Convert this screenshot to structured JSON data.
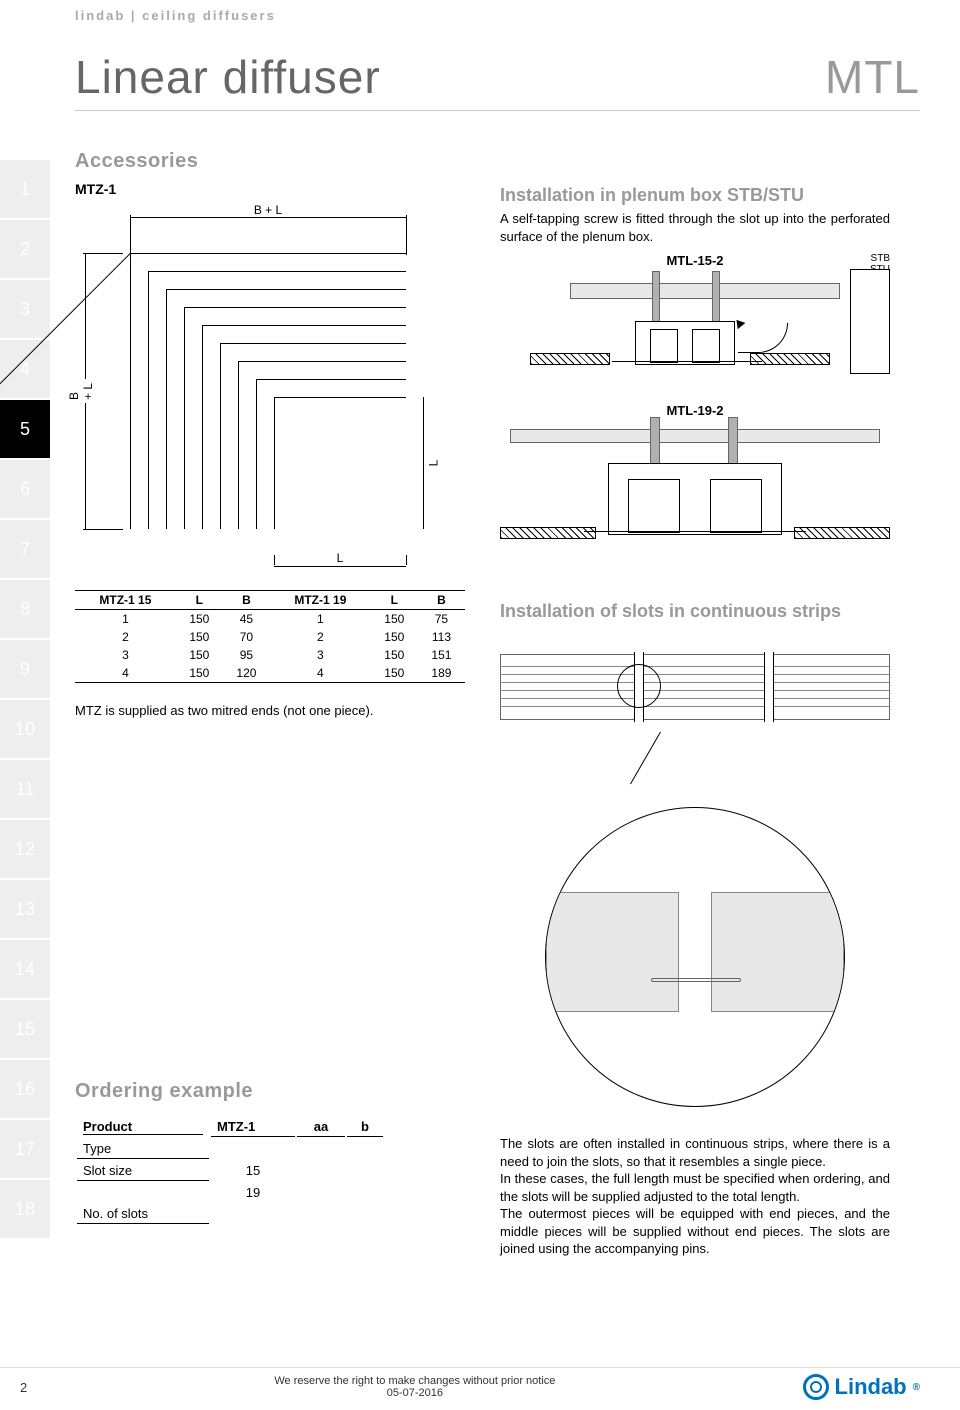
{
  "header": "lindab | ceiling diffusers",
  "title": "Linear diffuser",
  "code": "MTL",
  "tabs": [
    "1",
    "2",
    "3",
    "4",
    "5",
    "6",
    "7",
    "8",
    "9",
    "10",
    "11",
    "12",
    "13",
    "14",
    "15",
    "16",
    "17",
    "18"
  ],
  "tab_active_index": 4,
  "left": {
    "accessories": "Accessories",
    "mtz_label": "MTZ-1",
    "dim_bl": "B + L",
    "dim_l": "L",
    "table": {
      "headers": [
        "MTZ-1 15",
        "L",
        "B",
        "MTZ-1 19",
        "L",
        "B"
      ],
      "rows": [
        [
          "1",
          "150",
          "45",
          "1",
          "150",
          "75"
        ],
        [
          "2",
          "150",
          "70",
          "2",
          "150",
          "113"
        ],
        [
          "3",
          "150",
          "95",
          "3",
          "150",
          "151"
        ],
        [
          "4",
          "150",
          "120",
          "4",
          "150",
          "189"
        ]
      ]
    },
    "mtz_note": "MTZ is supplied as two mitred ends (not one piece).",
    "ordering": "Ordering example",
    "order_head": {
      "product": "Product",
      "code": "MTZ-1",
      "aa": "aa",
      "b": "b"
    },
    "order_rows": [
      {
        "label": "Type",
        "vals": [
          "",
          "",
          ""
        ]
      },
      {
        "label": "Slot size",
        "vals": [
          "15",
          "",
          ""
        ]
      },
      {
        "label": "",
        "vals": [
          "19",
          "",
          ""
        ]
      },
      {
        "label": "No. of slots",
        "vals": [
          "",
          "",
          ""
        ]
      }
    ]
  },
  "right": {
    "install_head": "Installation in plenum box STB/STU",
    "install_text": "A self-tapping screw is fitted through the slot up into the perforated surface of the plenum box.",
    "mtls": [
      "MTL-15-2",
      "MTL-19-2"
    ],
    "plenum_labels": "STB\nSTU",
    "slots_head": "Installation of slots in continuous strips",
    "slots_text": [
      "The slots are often installed in continuous strips, where there is a need to join the slots, so that it resembles a single piece.",
      "In these cases, the full length must be specified when ordering, and the slots will be supplied adjusted to the total length.",
      "The outermost pieces will be equipped with end pieces, and the middle pieces will be supplied without end pieces. The slots are joined using the accompanying pins."
    ]
  },
  "footer": {
    "page": "2",
    "notice": "We reserve the right to make changes without prior notice",
    "date": "05-07-2016",
    "brand": "Lindab"
  },
  "colors": {
    "grey_text": "#999999",
    "tab_bg": "#eeeeee",
    "tab_active": "#000000",
    "brand": "#0072bc",
    "fill_grey": "#e8e8e8"
  }
}
